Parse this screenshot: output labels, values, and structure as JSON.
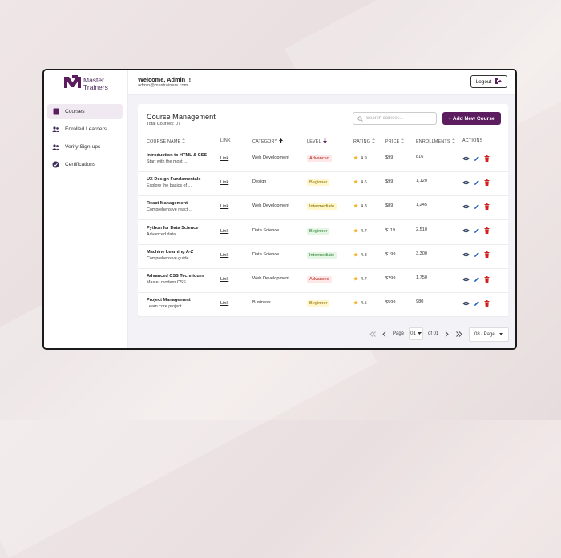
{
  "brand": {
    "line1": "Master",
    "line2": "Trainers",
    "color": "#5b1d5e"
  },
  "sidebar": {
    "items": [
      {
        "label": "Courses",
        "icon": "book-icon",
        "active": true
      },
      {
        "label": "Enrolled Learners",
        "icon": "users-icon",
        "active": false
      },
      {
        "label": "Verify Sign-ups",
        "icon": "users-icon",
        "active": false
      },
      {
        "label": "Certifications",
        "icon": "badge-check-icon",
        "active": false
      }
    ]
  },
  "header": {
    "welcome": "Welcome, Admin !!",
    "email": "admin@mastrainers.com",
    "logout_label": "Logout"
  },
  "main": {
    "title": "Course Management",
    "subtitle": "Total Courses: 07",
    "search_placeholder": "Search courses...",
    "add_label": "+ Add New Course",
    "columns": [
      "COURSE NAME",
      "LINK",
      "CATEGORY",
      "LEVEL",
      "RATING",
      "PRICE",
      "ENROLLMENTS",
      "ACTIONS"
    ],
    "rows": [
      {
        "name": "Introduction to HTML & CSS",
        "desc": "Start with the most ...",
        "link": "Link",
        "category": "Web Development",
        "level": "Advanced",
        "rating": "4.9",
        "price": "$99",
        "enrollments": "816"
      },
      {
        "name": "UX Design Fundamentals",
        "desc": "Explore the basics of ...",
        "link": "Link",
        "category": "Design",
        "level": "Beginner",
        "rating": "4.6",
        "price": "$99",
        "enrollments": "1,120"
      },
      {
        "name": "React Management",
        "desc": "Comprehensive react ...",
        "link": "Link",
        "category": "Web Development",
        "level": "Intermediate",
        "rating": "4.8",
        "price": "$89",
        "enrollments": "1,245"
      },
      {
        "name": "Python for Data Science",
        "desc": "Advanced data ...",
        "link": "Link",
        "category": "Data Science",
        "level": "Beginner",
        "rating": "4.7",
        "price": "$119",
        "enrollments": "2,510"
      },
      {
        "name": "Machine Learning A-Z",
        "desc": "Comprehensive guide ...",
        "link": "Link",
        "category": "Data Science",
        "level": "Intermediate",
        "rating": "4.8",
        "price": "$199",
        "enrollments": "3,300"
      },
      {
        "name": "Advanced CSS Techniques",
        "desc": "Master modern CSS ...",
        "link": "Link",
        "category": "Web Development",
        "level": "Advanced",
        "rating": "4.7",
        "price": "$299",
        "enrollments": "1,750"
      },
      {
        "name": "Project Management",
        "desc": "Learn core project ...",
        "link": "Link",
        "category": "Business",
        "level": "Beginner",
        "rating": "4.5",
        "price": "$599",
        "enrollments": "980"
      }
    ]
  },
  "pagination": {
    "page_label": "Page",
    "current_page": "01",
    "of_label": "of 01",
    "per_page": "08 / Page"
  },
  "colors": {
    "accent": "#5b1d5e",
    "star": "#f2b01e",
    "view": "#3a4a66",
    "edit": "#1e63c8",
    "delete": "#d32020"
  }
}
